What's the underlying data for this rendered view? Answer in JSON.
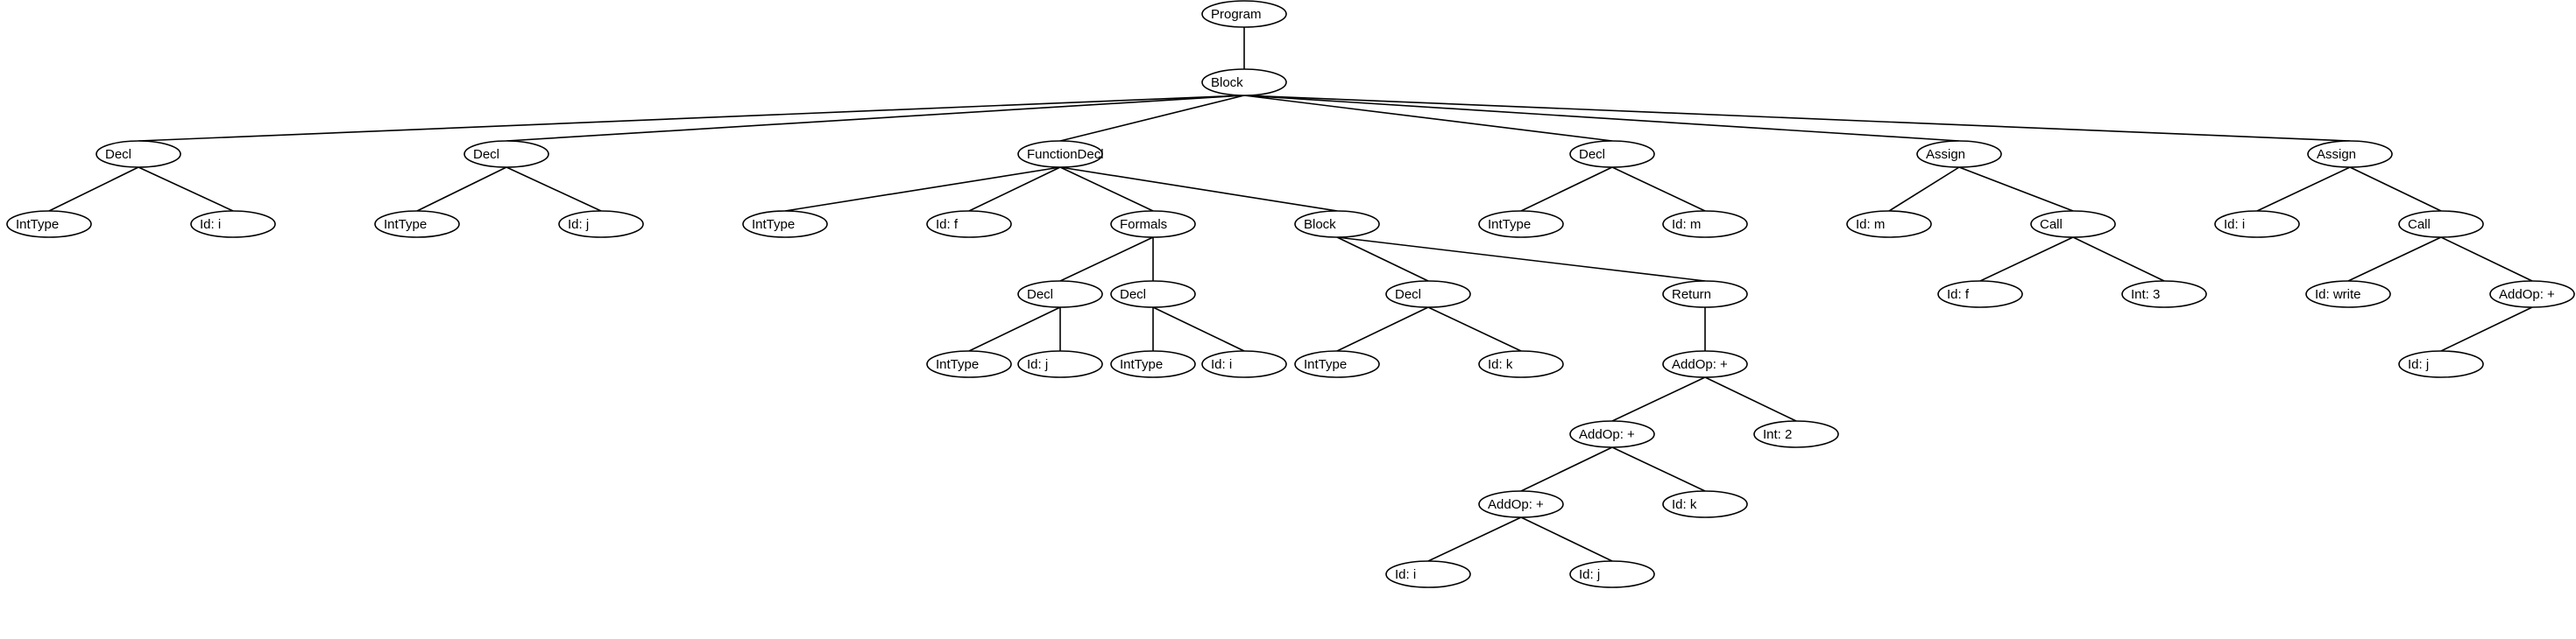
{
  "nodes": [
    {
      "id": "n0",
      "label": "Program"
    },
    {
      "id": "n1",
      "label": "Block"
    },
    {
      "id": "n2",
      "label": "Decl"
    },
    {
      "id": "n3",
      "label": "IntType"
    },
    {
      "id": "n4",
      "label": "Id: i"
    },
    {
      "id": "n5",
      "label": "Decl"
    },
    {
      "id": "n6",
      "label": "IntType"
    },
    {
      "id": "n7",
      "label": "Id: j"
    },
    {
      "id": "n8",
      "label": "FunctionDecl"
    },
    {
      "id": "n9",
      "label": "IntType"
    },
    {
      "id": "n10",
      "label": "Id: f"
    },
    {
      "id": "n11",
      "label": "Formals"
    },
    {
      "id": "n12",
      "label": "Decl"
    },
    {
      "id": "n13",
      "label": "IntType"
    },
    {
      "id": "n14",
      "label": "Id: j"
    },
    {
      "id": "n15",
      "label": "Decl"
    },
    {
      "id": "n16",
      "label": "IntType"
    },
    {
      "id": "n17",
      "label": "Id: i"
    },
    {
      "id": "n18",
      "label": "Block"
    },
    {
      "id": "n19",
      "label": "Decl"
    },
    {
      "id": "n20",
      "label": "IntType"
    },
    {
      "id": "n21",
      "label": "Id: k"
    },
    {
      "id": "n22",
      "label": "Return"
    },
    {
      "id": "n23",
      "label": "AddOp: +"
    },
    {
      "id": "n24",
      "label": "AddOp: +"
    },
    {
      "id": "n25",
      "label": "AddOp: +"
    },
    {
      "id": "n26",
      "label": "Id: i"
    },
    {
      "id": "n27",
      "label": "Id: j"
    },
    {
      "id": "n28",
      "label": "Id: k"
    },
    {
      "id": "n29",
      "label": "Int: 2"
    },
    {
      "id": "n30",
      "label": "Decl"
    },
    {
      "id": "n31",
      "label": "IntType"
    },
    {
      "id": "n32",
      "label": "Id: m"
    },
    {
      "id": "n33",
      "label": "Assign"
    },
    {
      "id": "n34",
      "label": "Id: m"
    },
    {
      "id": "n35",
      "label": "Call"
    },
    {
      "id": "n36",
      "label": "Id: f"
    },
    {
      "id": "n37",
      "label": "Int: 3"
    },
    {
      "id": "n38",
      "label": "Assign"
    },
    {
      "id": "n39",
      "label": "Id: i"
    },
    {
      "id": "n40",
      "label": "Call"
    },
    {
      "id": "n41",
      "label": "Id: write"
    },
    {
      "id": "n42",
      "label": "AddOp: +"
    },
    {
      "id": "n43",
      "label": "Id: j"
    }
  ],
  "edges": [
    [
      "n0",
      "n1"
    ],
    [
      "n1",
      "n2"
    ],
    [
      "n1",
      "n5"
    ],
    [
      "n1",
      "n8"
    ],
    [
      "n1",
      "n30"
    ],
    [
      "n1",
      "n33"
    ],
    [
      "n1",
      "n38"
    ],
    [
      "n2",
      "n3"
    ],
    [
      "n2",
      "n4"
    ],
    [
      "n5",
      "n6"
    ],
    [
      "n5",
      "n7"
    ],
    [
      "n8",
      "n9"
    ],
    [
      "n8",
      "n10"
    ],
    [
      "n8",
      "n11"
    ],
    [
      "n8",
      "n18"
    ],
    [
      "n11",
      "n12"
    ],
    [
      "n11",
      "n15"
    ],
    [
      "n12",
      "n13"
    ],
    [
      "n12",
      "n14"
    ],
    [
      "n15",
      "n16"
    ],
    [
      "n15",
      "n17"
    ],
    [
      "n18",
      "n19"
    ],
    [
      "n18",
      "n22"
    ],
    [
      "n19",
      "n20"
    ],
    [
      "n19",
      "n21"
    ],
    [
      "n22",
      "n23"
    ],
    [
      "n23",
      "n24"
    ],
    [
      "n23",
      "n29"
    ],
    [
      "n24",
      "n25"
    ],
    [
      "n24",
      "n28"
    ],
    [
      "n25",
      "n26"
    ],
    [
      "n25",
      "n27"
    ],
    [
      "n30",
      "n31"
    ],
    [
      "n30",
      "n32"
    ],
    [
      "n33",
      "n34"
    ],
    [
      "n33",
      "n35"
    ],
    [
      "n35",
      "n36"
    ],
    [
      "n35",
      "n37"
    ],
    [
      "n38",
      "n39"
    ],
    [
      "n38",
      "n40"
    ],
    [
      "n40",
      "n41"
    ],
    [
      "n40",
      "n42"
    ],
    [
      "n42",
      "n43"
    ]
  ]
}
